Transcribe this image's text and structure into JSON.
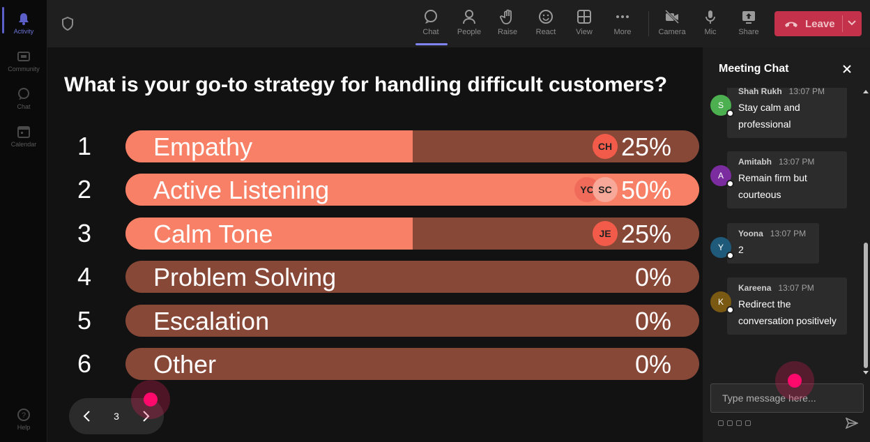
{
  "rail": {
    "items": [
      {
        "label": "Activity",
        "icon": "bell-icon"
      },
      {
        "label": "Community",
        "icon": "community-icon"
      },
      {
        "label": "Chat",
        "icon": "chat-icon"
      },
      {
        "label": "Calendar",
        "icon": "calendar-icon"
      }
    ],
    "help": {
      "label": "Help",
      "icon": "help-icon"
    }
  },
  "toolbar": {
    "buttons": [
      {
        "label": "Chat",
        "icon": "chat-icon"
      },
      {
        "label": "People",
        "icon": "people-icon"
      },
      {
        "label": "Raise",
        "icon": "raise-hand-icon"
      },
      {
        "label": "React",
        "icon": "react-icon"
      },
      {
        "label": "View",
        "icon": "view-grid-icon"
      },
      {
        "label": "More",
        "icon": "more-icon"
      },
      {
        "label": "Camera",
        "icon": "camera-off-icon"
      },
      {
        "label": "Mic",
        "icon": "mic-icon"
      },
      {
        "label": "Share",
        "icon": "share-icon"
      }
    ],
    "leave_label": "Leave"
  },
  "poll": {
    "question": "What is your go-to strategy for handling difficult customers?",
    "options": [
      {
        "num": "1",
        "label": "Empathy",
        "percent_text": "25%",
        "percent": 25,
        "voters": [
          "CH"
        ]
      },
      {
        "num": "2",
        "label": "Active Listening",
        "percent_text": "50%",
        "percent": 50,
        "voters": [
          "YC",
          "SC"
        ]
      },
      {
        "num": "3",
        "label": "Calm Tone",
        "percent_text": "25%",
        "percent": 25,
        "voters": [
          "JE"
        ]
      },
      {
        "num": "4",
        "label": "Problem Solving",
        "percent_text": "0%",
        "percent": 0,
        "voters": []
      },
      {
        "num": "5",
        "label": "Escalation",
        "percent_text": "0%",
        "percent": 0,
        "voters": []
      },
      {
        "num": "6",
        "label": "Other",
        "percent_text": "0%",
        "percent": 0,
        "voters": []
      }
    ],
    "page": "3"
  },
  "chat": {
    "title": "Meeting Chat",
    "messages": [
      {
        "initial": "S",
        "name": "Shah Rukh",
        "time": "13:07 PM",
        "text": "Stay calm and professional",
        "color": "#4caf50"
      },
      {
        "initial": "A",
        "name": "Amitabh",
        "time": "13:07 PM",
        "text": "Remain firm but courteous",
        "color": "#7b2c9e"
      },
      {
        "initial": "Y",
        "name": "Yoona",
        "time": "13:07 PM",
        "text": "2",
        "color": "#1f5a7a"
      },
      {
        "initial": "K",
        "name": "Kareena",
        "time": "13:07 PM",
        "text": "Redirect the conversation positively",
        "color": "#7a5a12"
      }
    ],
    "input_placeholder": "Type message here..."
  },
  "colors": {
    "bar_fill": "#f88067",
    "bar_track": "#874838",
    "leave": "#c4314b",
    "accent": "#7f85f5"
  }
}
